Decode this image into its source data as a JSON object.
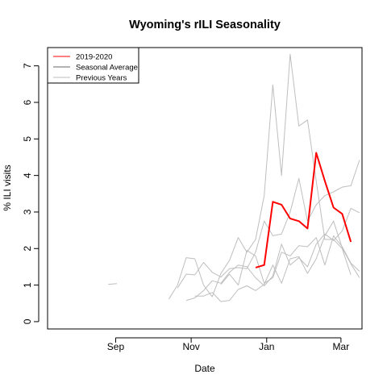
{
  "chart_data": {
    "type": "line",
    "title": "Wyoming's rILI Seasonality",
    "xlabel": "Date",
    "ylabel": "% ILI visits",
    "x_start": "2019-07-08",
    "xlim": [
      "2019-07-08",
      "2020-03-18"
    ],
    "ylim": [
      -0.2,
      7.5
    ],
    "x_ticks": [
      {
        "label": "Sep",
        "date": "2019-09-01"
      },
      {
        "label": "Nov",
        "date": "2019-11-01"
      },
      {
        "label": "Jan",
        "date": "2020-01-01"
      },
      {
        "label": "Mar",
        "date": "2020-03-01"
      }
    ],
    "y_ticks": [
      0,
      1,
      2,
      3,
      4,
      5,
      6,
      7
    ],
    "grid": false,
    "legend_position": "top-left",
    "legend": [
      {
        "label": "2019-2020",
        "color": "#ff0000"
      },
      {
        "label": "Seasonal Average",
        "color": "#666666"
      },
      {
        "label": "Previous Years",
        "color": "#bebebe"
      }
    ],
    "series": [
      {
        "name": "2019-2020",
        "color": "#ff0000",
        "role": "current",
        "points": [
          [
            "2019-12-23",
            1.48
          ],
          [
            "2019-12-30",
            1.55
          ],
          [
            "2020-01-06",
            3.28
          ],
          [
            "2020-01-13",
            3.2
          ],
          [
            "2020-01-20",
            2.82
          ],
          [
            "2020-01-27",
            2.75
          ],
          [
            "2020-02-03",
            2.55
          ],
          [
            "2020-02-10",
            4.62
          ],
          [
            "2020-02-17",
            3.85
          ],
          [
            "2020-02-24",
            3.12
          ],
          [
            "2020-03-02",
            2.95
          ],
          [
            "2020-03-09",
            2.18
          ]
        ]
      },
      {
        "color": "#bebebe",
        "role": "previous",
        "points": [
          [
            "2019-08-26",
            1.02
          ],
          [
            "2019-09-02",
            1.04
          ]
        ]
      },
      {
        "color": "#bebebe",
        "role": "previous",
        "points": [
          [
            "2019-10-14",
            0.62
          ],
          [
            "2019-10-21",
            1.0
          ],
          [
            "2019-10-28",
            1.75
          ],
          [
            "2019-11-04",
            1.72
          ],
          [
            "2019-11-11",
            1.0
          ],
          [
            "2019-11-18",
            0.68
          ],
          [
            "2019-11-25",
            1.32
          ],
          [
            "2019-12-02",
            1.68
          ],
          [
            "2019-12-09",
            2.3
          ],
          [
            "2019-12-16",
            1.9
          ],
          [
            "2019-12-23",
            2.25
          ],
          [
            "2019-12-30",
            3.45
          ],
          [
            "2020-01-06",
            6.48
          ],
          [
            "2020-01-13",
            4.0
          ],
          [
            "2020-01-20",
            7.32
          ],
          [
            "2020-01-27",
            5.35
          ],
          [
            "2020-02-03",
            5.52
          ],
          [
            "2020-02-10",
            3.85
          ],
          [
            "2020-02-17",
            2.25
          ],
          [
            "2020-02-24",
            2.25
          ],
          [
            "2020-03-02",
            2.0
          ],
          [
            "2020-03-09",
            1.28
          ]
        ]
      },
      {
        "color": "#bebebe",
        "role": "previous",
        "points": [
          [
            "2019-10-21",
            0.92
          ],
          [
            "2019-10-28",
            1.3
          ],
          [
            "2019-11-04",
            1.28
          ],
          [
            "2019-11-11",
            1.62
          ],
          [
            "2019-11-18",
            1.35
          ],
          [
            "2019-11-25",
            1.22
          ],
          [
            "2019-12-02",
            1.45
          ],
          [
            "2019-12-09",
            1.48
          ],
          [
            "2019-12-16",
            1.45
          ],
          [
            "2019-12-23",
            1.9
          ],
          [
            "2019-12-30",
            2.75
          ],
          [
            "2020-01-06",
            2.35
          ],
          [
            "2020-01-13",
            2.4
          ],
          [
            "2020-01-20",
            3.0
          ],
          [
            "2020-01-27",
            3.92
          ],
          [
            "2020-02-03",
            2.75
          ],
          [
            "2020-02-10",
            3.2
          ],
          [
            "2020-02-17",
            3.45
          ],
          [
            "2020-02-24",
            3.55
          ],
          [
            "2020-03-02",
            3.68
          ],
          [
            "2020-03-09",
            3.72
          ],
          [
            "2020-03-16",
            4.42
          ]
        ]
      },
      {
        "color": "#bebebe",
        "role": "previous",
        "points": [
          [
            "2019-10-28",
            0.58
          ],
          [
            "2019-11-04",
            0.65
          ],
          [
            "2019-11-11",
            0.85
          ],
          [
            "2019-11-18",
            1.12
          ],
          [
            "2019-11-25",
            1.05
          ],
          [
            "2019-12-02",
            1.35
          ],
          [
            "2019-12-09",
            1.55
          ],
          [
            "2019-12-16",
            1.5
          ],
          [
            "2019-12-23",
            1.2
          ],
          [
            "2019-12-30",
            0.98
          ],
          [
            "2020-01-06",
            1.25
          ],
          [
            "2020-01-13",
            2.12
          ],
          [
            "2020-01-20",
            1.55
          ],
          [
            "2020-01-27",
            1.75
          ],
          [
            "2020-02-03",
            1.5
          ],
          [
            "2020-02-10",
            2.12
          ],
          [
            "2020-02-17",
            2.4
          ],
          [
            "2020-02-24",
            2.22
          ],
          [
            "2020-03-02",
            2.48
          ],
          [
            "2020-03-09",
            3.1
          ],
          [
            "2020-03-16",
            2.98
          ]
        ]
      },
      {
        "color": "#bebebe",
        "role": "previous",
        "points": [
          [
            "2019-11-04",
            0.7
          ],
          [
            "2019-11-11",
            0.7
          ],
          [
            "2019-11-18",
            0.8
          ],
          [
            "2019-11-25",
            0.55
          ],
          [
            "2019-12-02",
            0.58
          ],
          [
            "2019-12-09",
            0.88
          ],
          [
            "2019-12-16",
            0.98
          ],
          [
            "2019-12-23",
            0.85
          ],
          [
            "2019-12-30",
            1.02
          ],
          [
            "2020-01-06",
            1.55
          ],
          [
            "2020-01-13",
            1.05
          ],
          [
            "2020-01-20",
            1.72
          ],
          [
            "2020-01-27",
            1.78
          ],
          [
            "2020-02-03",
            1.32
          ],
          [
            "2020-02-10",
            1.72
          ],
          [
            "2020-02-17",
            2.35
          ],
          [
            "2020-02-24",
            2.75
          ],
          [
            "2020-03-02",
            2.02
          ],
          [
            "2020-03-09",
            1.58
          ],
          [
            "2020-03-16",
            1.2
          ]
        ]
      },
      {
        "color": "#bebebe",
        "role": "previous",
        "points": [
          [
            "2019-11-25",
            1.02
          ],
          [
            "2019-12-02",
            1.3
          ],
          [
            "2019-12-09",
            1.0
          ],
          [
            "2019-12-16",
            1.95
          ],
          [
            "2019-12-23",
            1.8
          ],
          [
            "2019-12-30",
            1.05
          ],
          [
            "2020-01-06",
            1.2
          ],
          [
            "2020-01-13",
            1.9
          ],
          [
            "2020-01-20",
            1.8
          ],
          [
            "2020-01-27",
            2.08
          ],
          [
            "2020-02-03",
            2.05
          ],
          [
            "2020-02-10",
            2.3
          ],
          [
            "2020-02-17",
            1.55
          ],
          [
            "2020-02-24",
            2.35
          ],
          [
            "2020-03-02",
            2.05
          ],
          [
            "2020-03-09",
            1.6
          ],
          [
            "2020-03-16",
            1.38
          ]
        ]
      }
    ]
  }
}
